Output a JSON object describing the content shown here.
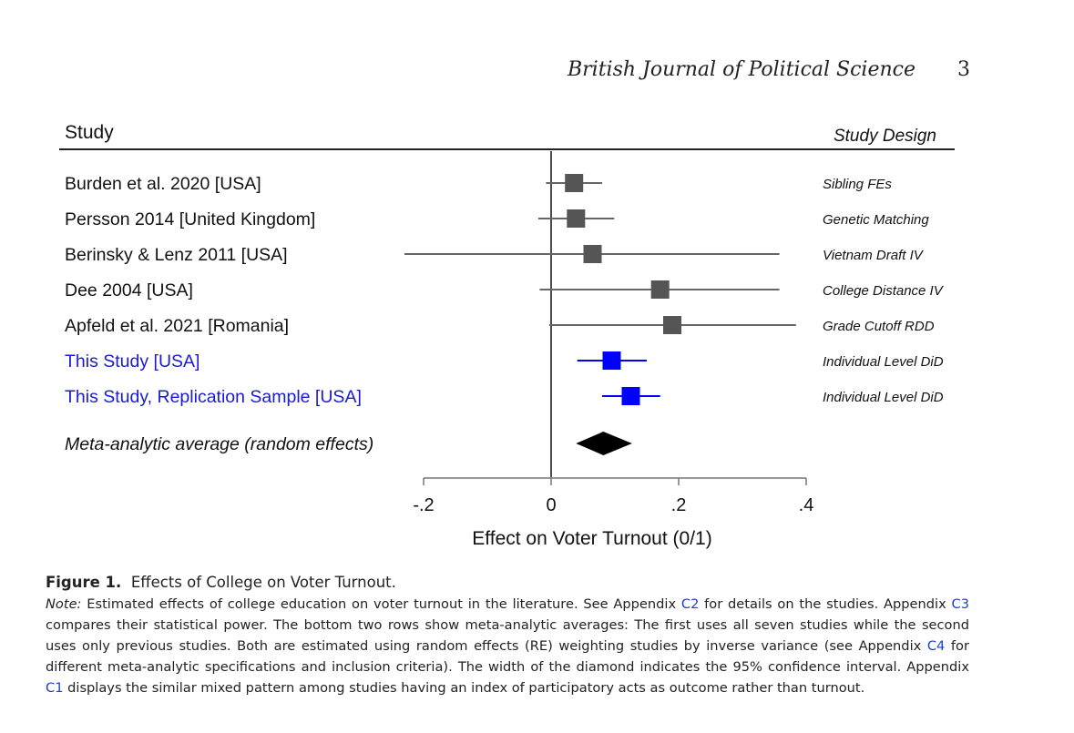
{
  "header": {
    "journal": "British Journal of Political Science",
    "page": "3"
  },
  "chart_data": {
    "type": "forest",
    "column_headers": {
      "study": "Study",
      "design": "Study Design"
    },
    "xlabel": "Effect on Voter Turnout (0/1)",
    "xlim": [
      -0.2,
      0.4
    ],
    "xticks": [
      -0.2,
      0,
      0.2,
      0.4
    ],
    "xtick_labels": [
      "-.2",
      "0",
      ".2",
      ".4"
    ],
    "rows": [
      {
        "study": "Burden et al. 2020 [USA]",
        "design": "Sibling FEs",
        "estimate": 0.036,
        "ci": [
          -0.008,
          0.08
        ],
        "color": "#555555"
      },
      {
        "study": "Persson 2014 [United Kingdom]",
        "design": "Genetic Matching",
        "estimate": 0.039,
        "ci": [
          -0.02,
          0.099
        ],
        "color": "#555555"
      },
      {
        "study": "Berinsky & Lenz 2011 [USA]",
        "design": "Vietnam Draft IV",
        "estimate": 0.065,
        "ci": [
          -0.23,
          0.358
        ],
        "color": "#555555"
      },
      {
        "study": "Dee 2004 [USA]",
        "design": "College Distance IV",
        "estimate": 0.171,
        "ci": [
          -0.018,
          0.358
        ],
        "color": "#555555"
      },
      {
        "study": "Apfeld et al. 2021 [Romania]",
        "design": "Grade Cutoff RDD",
        "estimate": 0.19,
        "ci": [
          -0.003,
          0.384
        ],
        "color": "#555555"
      },
      {
        "study": "This Study [USA]",
        "design": "Individual Level DiD",
        "estimate": 0.095,
        "ci": [
          0.041,
          0.15
        ],
        "color": "#0000ff"
      },
      {
        "study": "This Study, Replication Sample [USA]",
        "design": "Individual Level DiD",
        "estimate": 0.125,
        "ci": [
          0.08,
          0.171
        ],
        "color": "#0000ff"
      }
    ],
    "meta": {
      "label": "Meta-analytic average (random effects)",
      "estimate": 0.082,
      "ci": [
        0.039,
        0.127
      ]
    }
  },
  "caption": {
    "label": "Figure 1.",
    "title": "Effects of College on Voter Turnout.",
    "note_label": "Note:",
    "segments": [
      {
        "text": "Estimated effects of college education on voter turnout in the literature. See Appendix "
      },
      {
        "text": "C2",
        "link": true
      },
      {
        "text": " for details on the studies. Appendix "
      },
      {
        "text": "C3",
        "link": true
      },
      {
        "text": " compares their statistical power. The bottom two rows show meta-analytic averages: The first uses all seven studies while the second uses only previous studies. Both are estimated using random effects (RE) weighting studies by inverse variance (see Appendix "
      },
      {
        "text": "C4",
        "link": true
      },
      {
        "text": " for different meta-analytic specifications and inclusion criteria). The width of the diamond indicates the 95% confidence interval. Appendix "
      },
      {
        "text": "C1",
        "link": true
      },
      {
        "text": " displays the similar mixed pattern among studies having an index of participatory acts as outcome rather than turnout."
      }
    ]
  }
}
